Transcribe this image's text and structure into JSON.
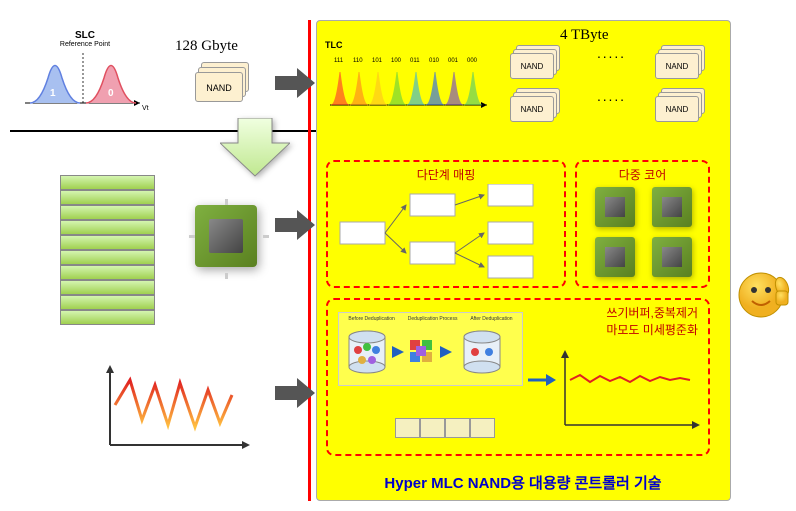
{
  "slc": {
    "title": "SLC",
    "subtitle": "Reference Point",
    "left_label": "1",
    "right_label": "0",
    "axis_label": "Vt",
    "left_color": "#6080e0",
    "left_fill": "#a8c0f0",
    "right_color": "#e05060",
    "right_fill": "#f0a0b0"
  },
  "left_capacity": "128 Gbyte",
  "nand_label": "NAND",
  "right_capacity": "4 TByte",
  "tlc": {
    "title": "TLC",
    "labels": [
      "111",
      "110",
      "101",
      "100",
      "011",
      "010",
      "001",
      "000"
    ],
    "colors": [
      "#ff3030",
      "#ff8020",
      "#ffc020",
      "#60d040",
      "#30b0e0",
      "#2060ff",
      "#7040d0",
      "#50c870"
    ]
  },
  "mapping": {
    "title": "다단계 매핑"
  },
  "multicore": {
    "title": "다중 코어"
  },
  "dedup": {
    "line1": "쓰기버퍼,중복제거",
    "line2": "마모도 미세평준화",
    "headers": [
      "Before Deduplication",
      "Deduplication Process",
      "After Deduplication"
    ]
  },
  "bottom_title": "Hyper MLC NAND용 대용량 콘트롤러 기술",
  "colors": {
    "yellow": "#ffff00",
    "red_dash": "#f00",
    "title_red": "#c00000",
    "title_blue": "#0000cc",
    "flat_line": "#e02020"
  },
  "dots": ". . . . ."
}
